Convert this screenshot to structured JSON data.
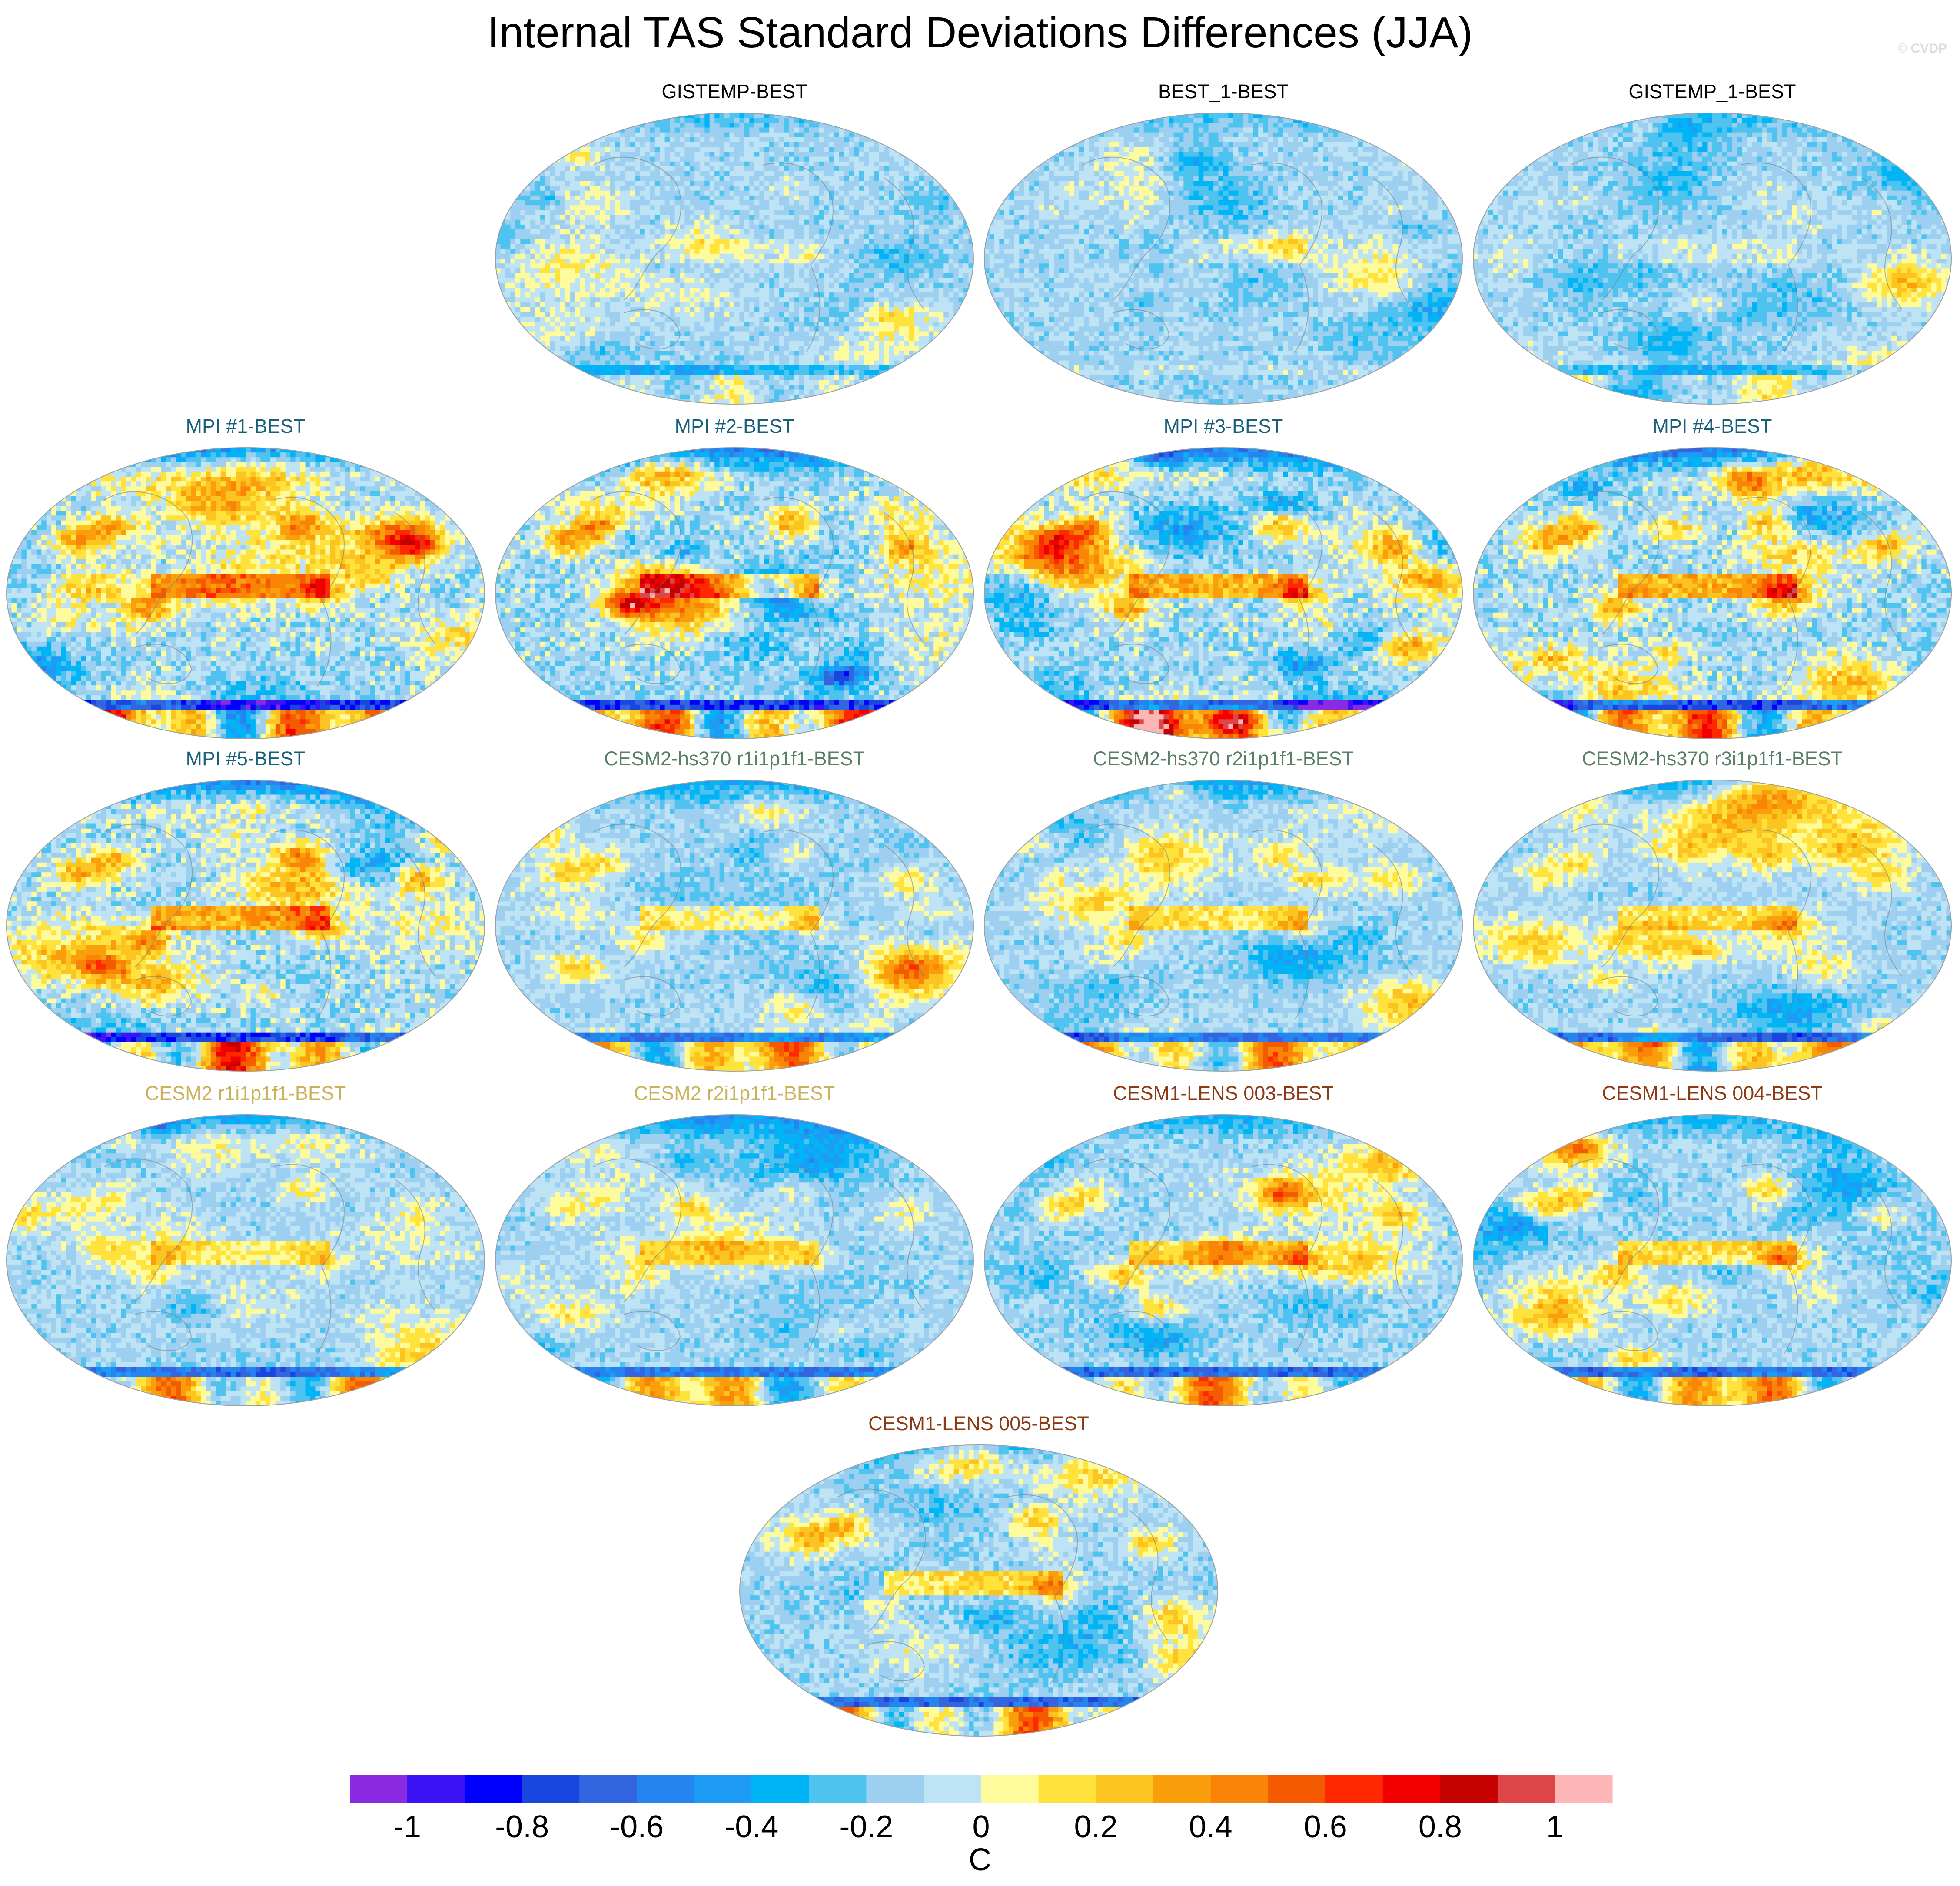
{
  "title": "Internal TAS Standard Deviations Differences (JJA)",
  "watermark": "© CVDP",
  "chart_data": {
    "type": "heatmap",
    "projection": "Robinson (global map panels)",
    "season": "JJA",
    "panels": [
      {
        "name": "GISTEMP-BEST",
        "title_color": "#000000"
      },
      {
        "name": "BEST_1-BEST",
        "title_color": "#000000"
      },
      {
        "name": "GISTEMP_1-BEST",
        "title_color": "#000000"
      },
      {
        "name": "MPI #1-BEST",
        "title_color": "#1a5f7a"
      },
      {
        "name": "MPI #2-BEST",
        "title_color": "#1a5f7a"
      },
      {
        "name": "MPI #3-BEST",
        "title_color": "#1a5f7a"
      },
      {
        "name": "MPI #4-BEST",
        "title_color": "#1a5f7a"
      },
      {
        "name": "MPI #5-BEST",
        "title_color": "#1a5f7a"
      },
      {
        "name": "CESM2-hs370 r1i1p1f1-BEST",
        "title_color": "#5a7f68"
      },
      {
        "name": "CESM2-hs370 r2i1p1f1-BEST",
        "title_color": "#5a7f68"
      },
      {
        "name": "CESM2-hs370 r3i1p1f1-BEST",
        "title_color": "#5a7f68"
      },
      {
        "name": "CESM2 r1i1p1f1-BEST",
        "title_color": "#c9b25a"
      },
      {
        "name": "CESM2 r2i1p1f1-BEST",
        "title_color": "#c9b25a"
      },
      {
        "name": "CESM1-LENS 003-BEST",
        "title_color": "#8b3a14"
      },
      {
        "name": "CESM1-LENS 004-BEST",
        "title_color": "#8b3a14"
      },
      {
        "name": "CESM1-LENS 005-BEST",
        "title_color": "#8b3a14"
      }
    ],
    "colorbar": {
      "units": "C",
      "range": [
        -1.1,
        1.1
      ],
      "boundaries": [
        -1.1,
        -1.0,
        -0.9,
        -0.8,
        -0.7,
        -0.6,
        -0.5,
        -0.4,
        -0.3,
        -0.2,
        -0.1,
        0.0,
        0.1,
        0.2,
        0.3,
        0.4,
        0.5,
        0.6,
        0.7,
        0.8,
        0.9,
        1.0,
        1.1
      ],
      "tick_values": [
        -1,
        -0.8,
        -0.6,
        -0.4,
        -0.2,
        0,
        0.2,
        0.4,
        0.6,
        0.8,
        1
      ],
      "tick_labels": [
        "-1",
        "-0.8",
        "-0.6",
        "-0.4",
        "-0.2",
        "0",
        "0.2",
        "0.4",
        "0.6",
        "0.8",
        "1"
      ],
      "colors": [
        "#8a2be2",
        "#3c13f5",
        "#0000ff",
        "#1a46e0",
        "#3465e0",
        "#2484f0",
        "#1e9cf5",
        "#00b4f5",
        "#4fc3f0",
        "#9ccff0",
        "#bde3f5",
        "#fefb9d",
        "#ffe33c",
        "#fbc420",
        "#fa9f0b",
        "#f98406",
        "#f45a00",
        "#ff2800",
        "#f20000",
        "#c50000",
        "#dc4646",
        "#fcb6b6"
      ]
    }
  }
}
